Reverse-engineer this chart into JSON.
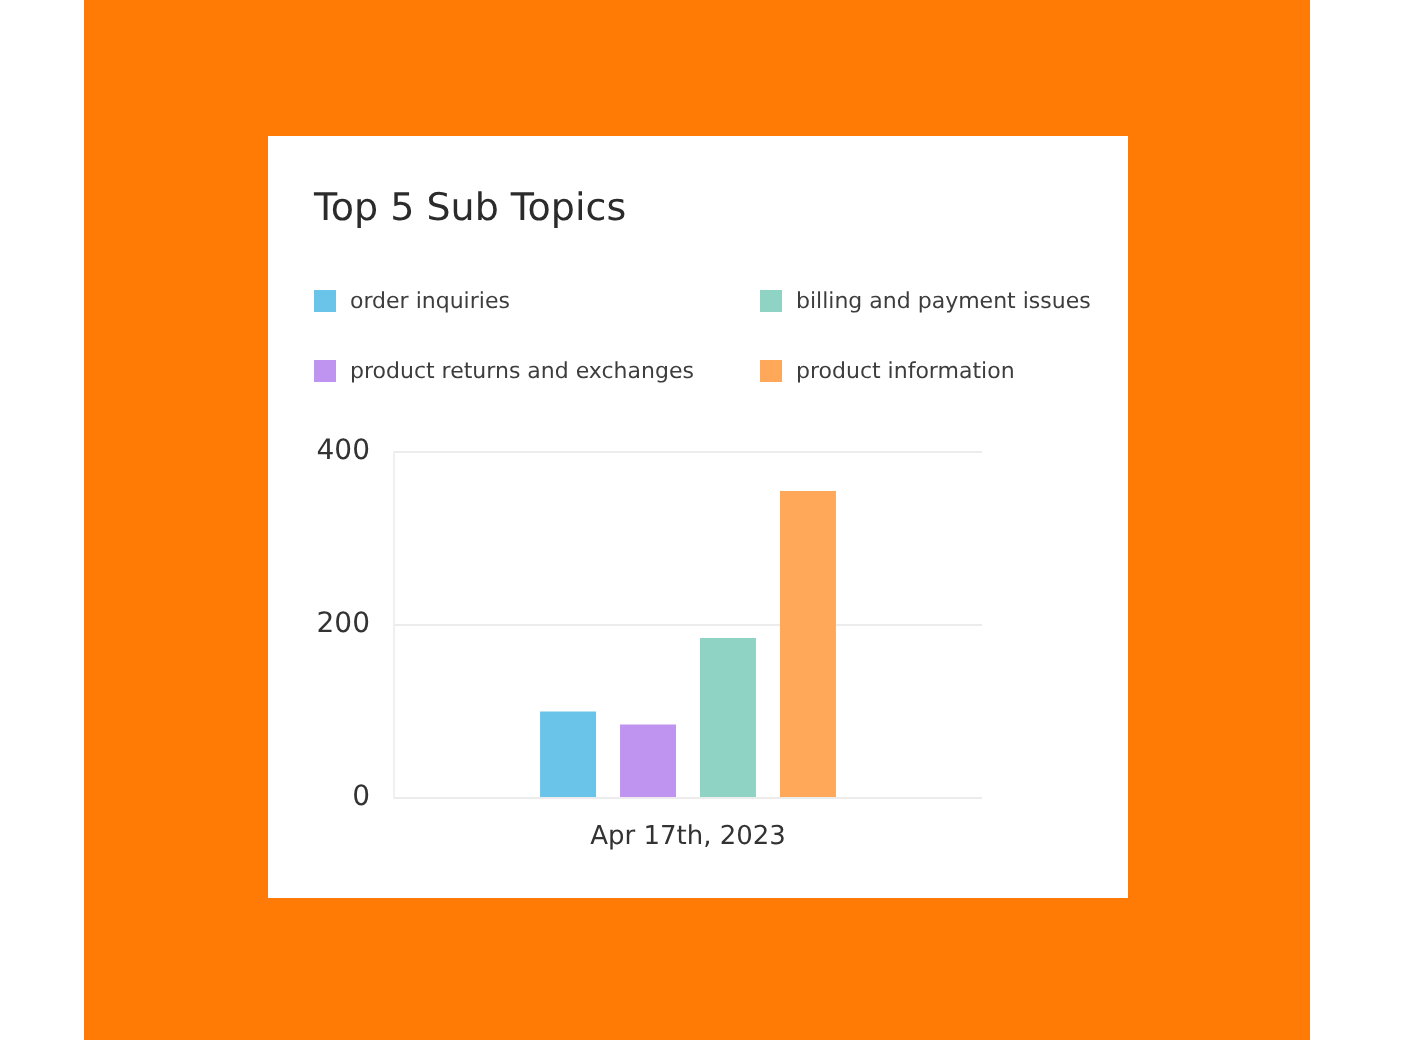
{
  "chart_data": {
    "type": "bar",
    "title": "Top 5 Sub Topics",
    "categories": [
      "Apr 17th, 2023"
    ],
    "series": [
      {
        "name": "order inquiries",
        "color": "#6ac4ea",
        "values": [
          100
        ]
      },
      {
        "name": "product returns and exchanges",
        "color": "#bf94f0",
        "values": [
          85
        ]
      },
      {
        "name": "billing and payment issues",
        "color": "#8fd3c4",
        "values": [
          185
        ]
      },
      {
        "name": "product information",
        "color": "#ffa85a",
        "values": [
          355
        ]
      }
    ],
    "ylim": [
      0,
      400
    ],
    "yticks": [
      0,
      200,
      400
    ],
    "grid": "y",
    "legend": "top"
  }
}
